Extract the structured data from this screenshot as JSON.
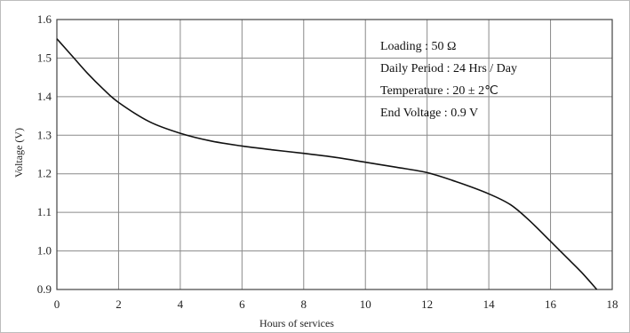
{
  "chart_data": {
    "type": "line",
    "xlabel": "Hours of services",
    "ylabel": "Voltage (V)",
    "xlim": [
      0,
      18
    ],
    "ylim": [
      0.9,
      1.6
    ],
    "x_ticks": [
      0,
      2,
      4,
      6,
      8,
      10,
      12,
      14,
      16,
      18
    ],
    "y_ticks": [
      0.9,
      1.0,
      1.1,
      1.2,
      1.3,
      1.4,
      1.5,
      1.6
    ],
    "x_tick_labels": [
      "0",
      "2",
      "4",
      "6",
      "8",
      "10",
      "12",
      "14",
      "16",
      "18"
    ],
    "y_tick_labels": [
      "0.9",
      "1.0",
      "1.1",
      "1.2",
      "1.3",
      "1.4",
      "1.5",
      "1.6"
    ],
    "grid": true,
    "series": [
      {
        "x": [
          0,
          0.5,
          1,
          1.5,
          2,
          3,
          4,
          5,
          6,
          7,
          8,
          9,
          10,
          11,
          12,
          13,
          14,
          14.7,
          15.3,
          16,
          16.5,
          17,
          17.5
        ],
        "y": [
          1.55,
          1.505,
          1.46,
          1.42,
          1.385,
          1.335,
          1.305,
          1.285,
          1.272,
          1.262,
          1.253,
          1.243,
          1.23,
          1.217,
          1.203,
          1.178,
          1.148,
          1.12,
          1.08,
          1.025,
          0.985,
          0.945,
          0.9
        ]
      }
    ],
    "annotations": [
      "Loading : 50 Ω",
      "Daily Period : 24 Hrs / Day",
      "Temperature : 20 ± 2℃",
      "End Voltage :  0.9 V"
    ]
  },
  "style": {
    "line_color": "#111111",
    "grid_color": "#8a8a8a",
    "background": "#ffffff"
  }
}
